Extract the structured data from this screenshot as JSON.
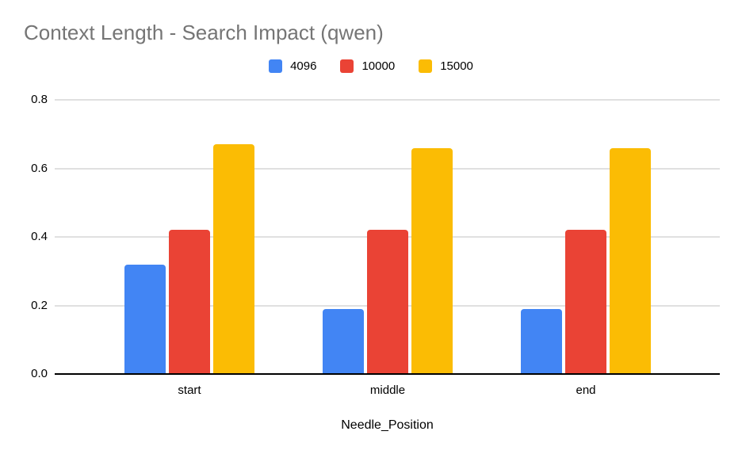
{
  "chart_data": {
    "type": "bar",
    "title": "Context Length - Search Impact (qwen)",
    "xlabel": "Needle_Position",
    "ylabel": "",
    "categories": [
      "start",
      "middle",
      "end"
    ],
    "series": [
      {
        "name": "4096",
        "color": "#4285F4",
        "values": [
          0.32,
          0.19,
          0.19
        ]
      },
      {
        "name": "10000",
        "color": "#EA4335",
        "values": [
          0.42,
          0.42,
          0.42
        ]
      },
      {
        "name": "15000",
        "color": "#FBBC04",
        "values": [
          0.67,
          0.66,
          0.66
        ]
      }
    ],
    "ylim": [
      0,
      0.8
    ],
    "yticks": [
      0,
      0.2,
      0.4,
      0.6,
      0.8
    ],
    "ytick_labels": [
      "0.0",
      "0.2",
      "0.4",
      "0.6",
      "0.8"
    ],
    "grid": true,
    "legend_position": "top",
    "style": {
      "title_color": "#757575",
      "gridline_color": "#e0e0e0",
      "axis_color": "#000000",
      "label_color": "#000000",
      "background": "#ffffff"
    }
  }
}
